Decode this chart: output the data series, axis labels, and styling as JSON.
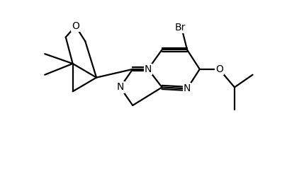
{
  "background_color": "#ffffff",
  "line_color": "#000000",
  "line_width": 1.6,
  "font_size": 10,
  "figsize": [
    4.06,
    2.39
  ],
  "dpi": 100,
  "xlim": [
    0,
    10
  ],
  "ylim": [
    0,
    6
  ]
}
